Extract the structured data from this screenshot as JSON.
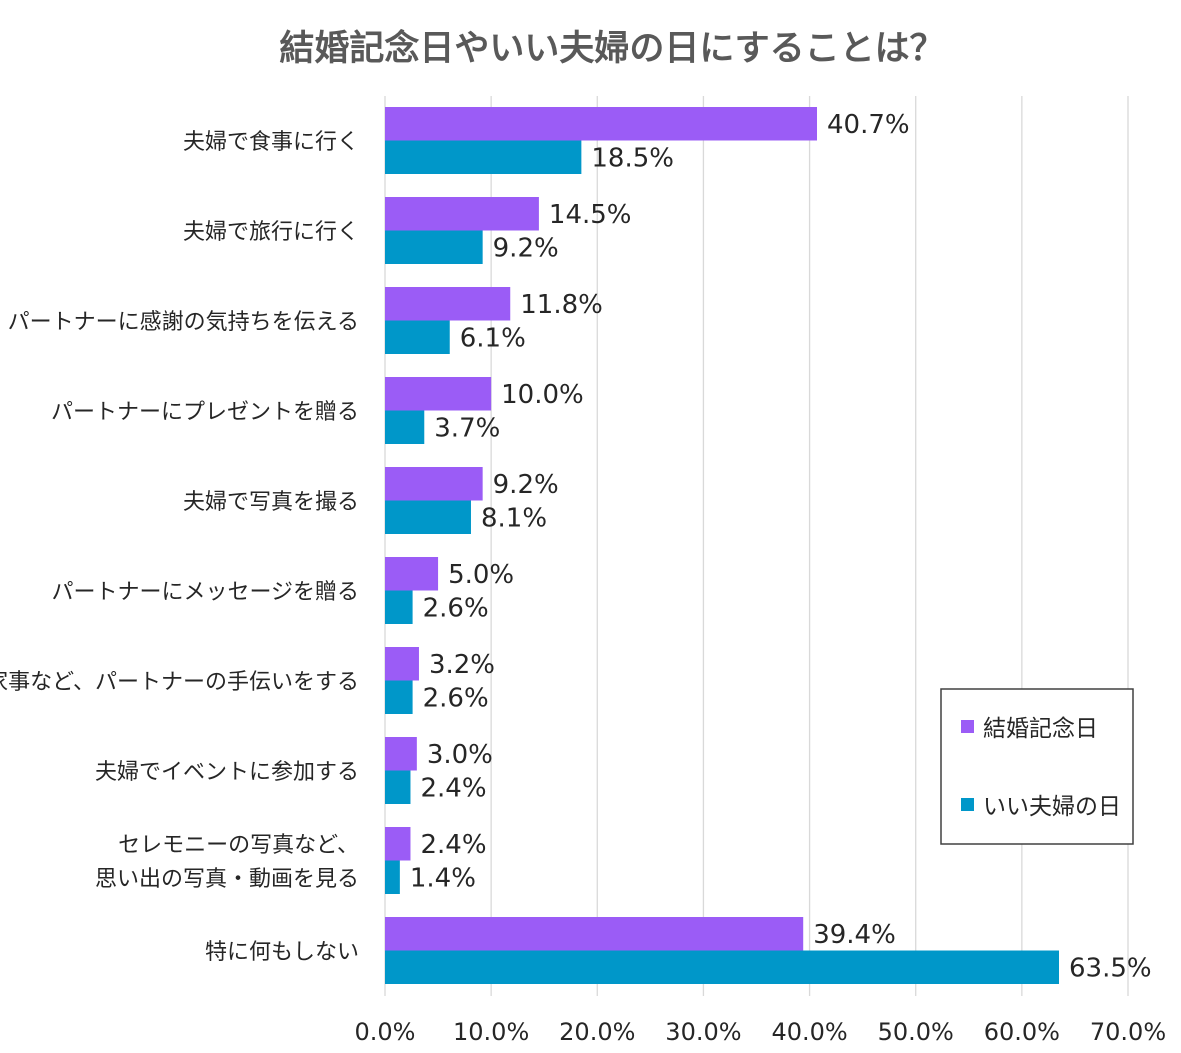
{
  "chart_data": {
    "type": "bar",
    "orientation": "horizontal",
    "title": "結婚記念日やいい夫婦の日にすることは？",
    "categories": [
      [
        "夫婦で食事に行く"
      ],
      [
        "夫婦で旅行に行く"
      ],
      [
        "パートナーに感謝の気持ちを伝える"
      ],
      [
        "パートナーにプレゼントを贈る"
      ],
      [
        "夫婦で写真を撮る"
      ],
      [
        "パートナーにメッセージを贈る"
      ],
      [
        "家事など、パートナーの手伝いをする"
      ],
      [
        "夫婦でイベントに参加する"
      ],
      [
        "セレモニーの写真など、",
        "思い出の写真・動画を見る"
      ],
      [
        "特に何もしない"
      ]
    ],
    "series": [
      {
        "name": "結婚記念日",
        "color": "#9b5cf6",
        "values": [
          40.7,
          14.5,
          11.8,
          10.0,
          9.2,
          5.0,
          3.2,
          3.0,
          2.4,
          39.4
        ],
        "labels": [
          "40.7%",
          "14.5%",
          "11.8%",
          "10.0%",
          "9.2%",
          "5.0%",
          "3.2%",
          "3.0%",
          "2.4%",
          "39.4%"
        ]
      },
      {
        "name": "いい夫婦の日",
        "color": "#0097c9",
        "values": [
          18.5,
          9.2,
          6.1,
          3.7,
          8.1,
          2.6,
          2.6,
          2.4,
          1.4,
          63.5
        ],
        "labels": [
          "18.5%",
          "9.2%",
          "6.1%",
          "3.7%",
          "8.1%",
          "2.6%",
          "2.6%",
          "2.4%",
          "1.4%",
          "63.5%"
        ]
      }
    ],
    "xlim": [
      0,
      70
    ],
    "xticks": [
      0,
      10,
      20,
      30,
      40,
      50,
      60,
      70
    ],
    "xtick_labels": [
      "0.0%",
      "10.0%",
      "20.0%",
      "30.0%",
      "40.0%",
      "50.0%",
      "60.0%",
      "70.0%"
    ],
    "grid": true,
    "legend_position": "right"
  }
}
